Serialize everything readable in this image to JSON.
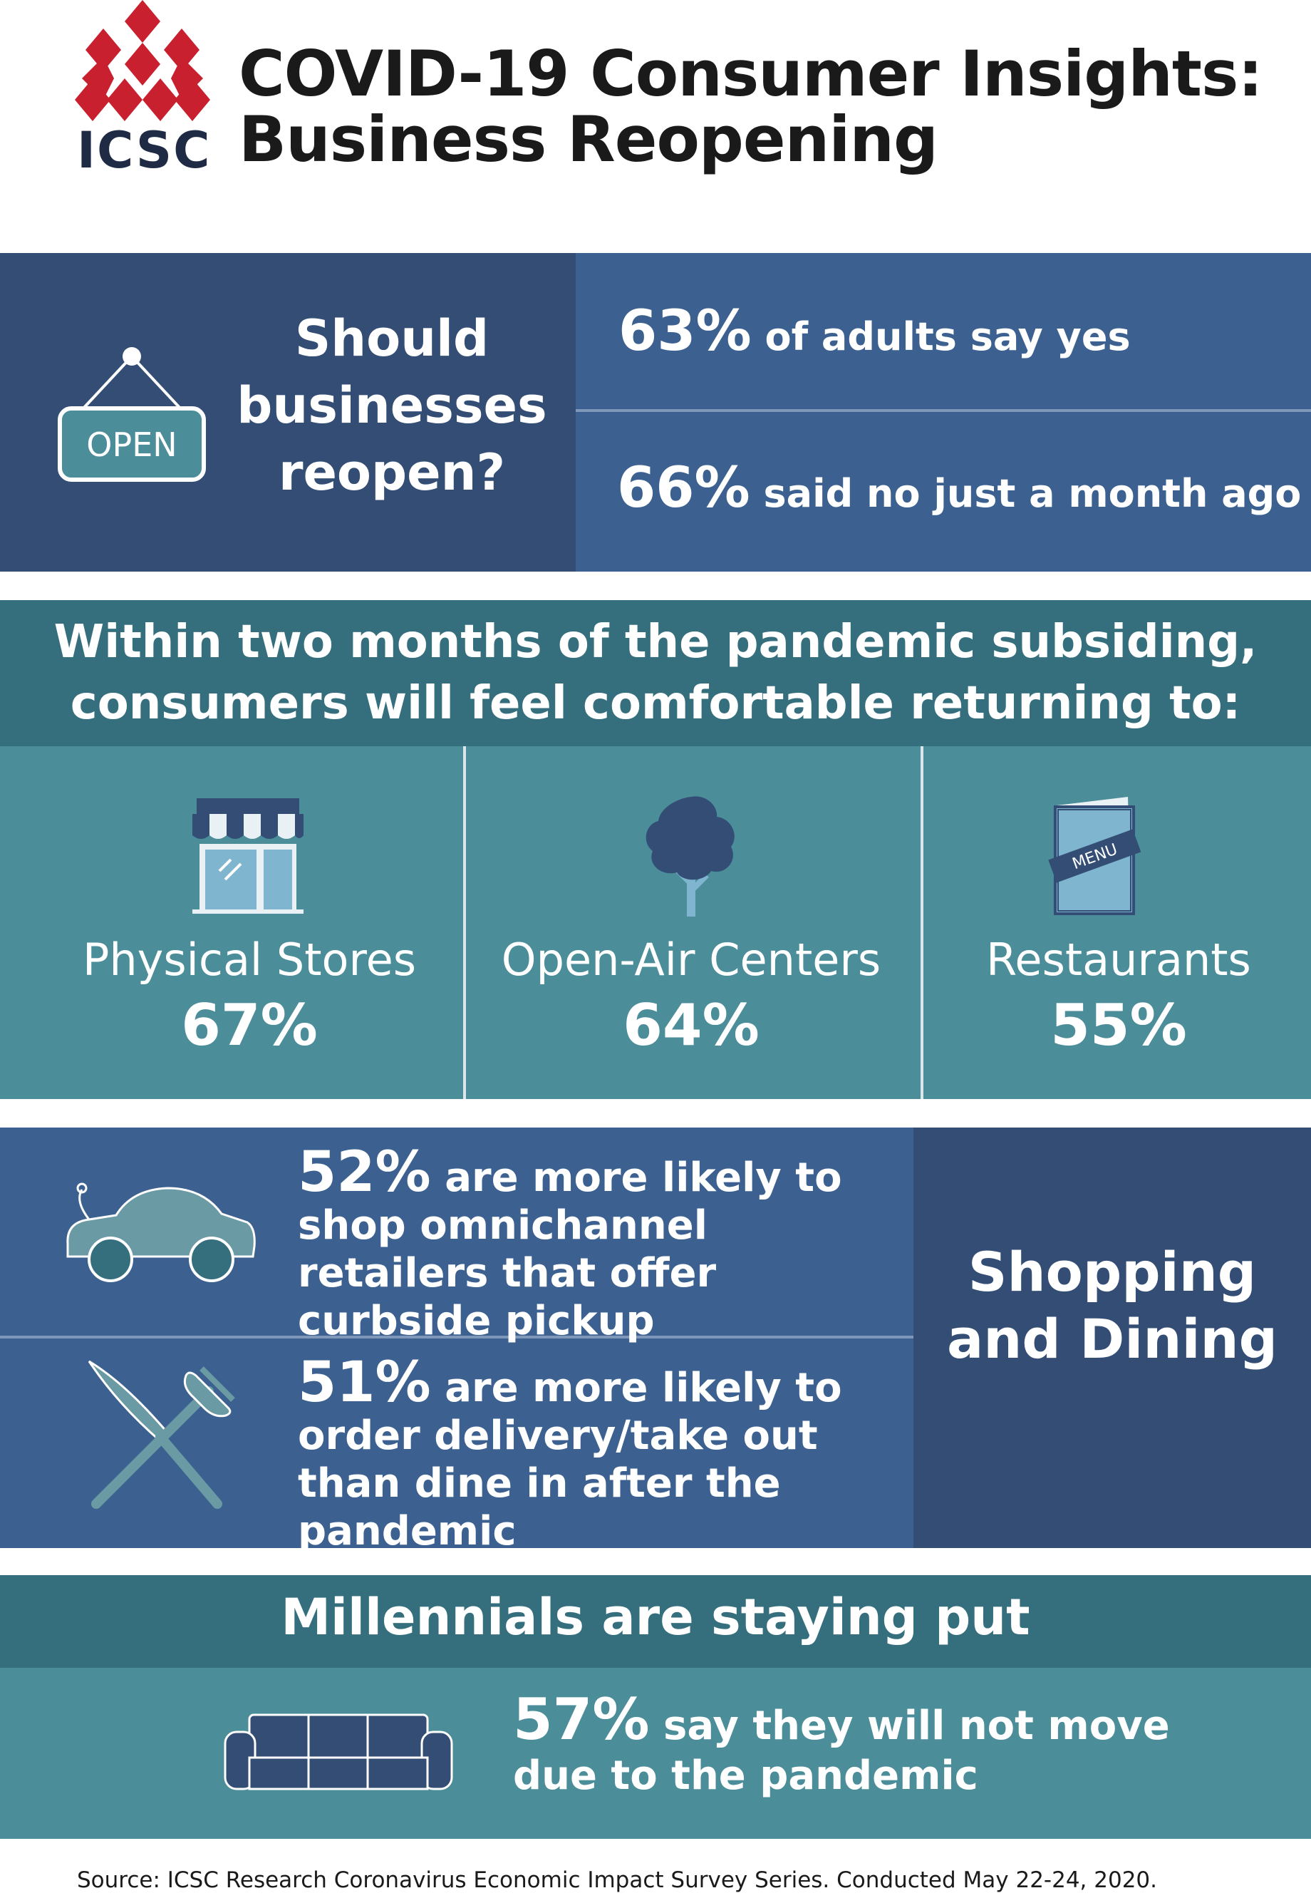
{
  "header": {
    "logo_text": "ICSC",
    "title_line1": "COVID-19 Consumer Insights:",
    "title_line2": "Business Reopening"
  },
  "section_reopen": {
    "sign_text": "OPEN",
    "question": "Should businesses reopen?",
    "stat_yes": {
      "value": "63%",
      "text": "of adults say yes"
    },
    "stat_no": {
      "value": "66%",
      "text": "said no just a month ago"
    }
  },
  "section_returning": {
    "heading_line1": "Within two months of the pandemic subsiding,",
    "heading_line2": "consumers will feel comfortable returning to:",
    "categories": [
      {
        "name": "Physical Stores",
        "value": "67%",
        "icon": "storefront-icon"
      },
      {
        "name": "Open-Air Centers",
        "value": "64%",
        "icon": "tree-icon"
      },
      {
        "name": "Restaurants",
        "value": "55%",
        "icon": "menu-icon"
      }
    ],
    "menu_icon_label": "MENU"
  },
  "section_shopping": {
    "title": "Shopping and Dining",
    "items": [
      {
        "value": "52%",
        "text": "are more likely to shop omnichannel retailers that offer curbside pickup",
        "icon": "car-icon"
      },
      {
        "value": "51%",
        "text": "are more likely to order delivery/take out than dine in after the pandemic",
        "icon": "knife-fork-icon"
      }
    ]
  },
  "section_millennials": {
    "heading": "Millennials are staying put",
    "stat": {
      "value": "57%",
      "text": "say they will not move due to the pandemic"
    },
    "icon": "sofa-icon"
  },
  "footer": {
    "source": "Source: ICSC Research Coronavirus Economic Impact Survey Series. Conducted May 22-24, 2020."
  },
  "colors": {
    "brand_red": "#c8202f",
    "navy": "#334d75",
    "blue": "#3c6190",
    "teal_dark": "#356f7d",
    "teal": "#4b8d99"
  }
}
